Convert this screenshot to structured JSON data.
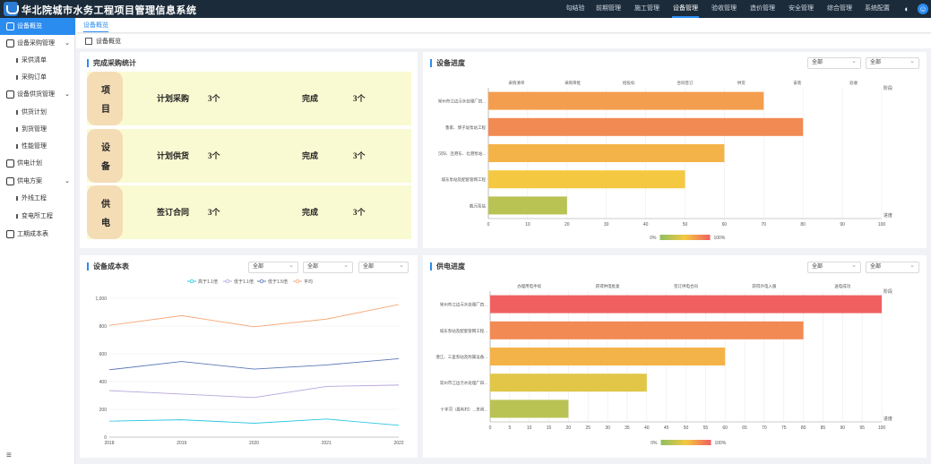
{
  "app": {
    "title": "华北院城市水务工程项目管理信息系统"
  },
  "nav": {
    "items": [
      "勾结验",
      "前期管理",
      "施工管理",
      "设备管理",
      "验收管理",
      "造价管理",
      "安全管理",
      "综合管理",
      "系统配置"
    ],
    "active": "设备管理"
  },
  "sidebar": {
    "items": [
      {
        "label": "设备概览",
        "active": true
      },
      {
        "label": "设备采购管理",
        "expandable": true
      },
      {
        "label": "采供清单",
        "sub": true
      },
      {
        "label": "采购订单",
        "sub": true
      },
      {
        "label": "设备供货管理",
        "expandable": true
      },
      {
        "label": "供货计划",
        "sub": true
      },
      {
        "label": "到货管理",
        "sub": true
      },
      {
        "label": "性能管理",
        "sub": true
      },
      {
        "label": "供电计划"
      },
      {
        "label": "供电方案",
        "expandable": true
      },
      {
        "label": "外线工程",
        "sub": true
      },
      {
        "label": "变电所工程",
        "sub": true
      },
      {
        "label": "工期成本表"
      }
    ]
  },
  "tabs": {
    "current": "设备概览"
  },
  "breadcrumb": {
    "current": "设备概览"
  },
  "procurement": {
    "title": "完成采购统计",
    "rows": [
      {
        "cap": [
          "项",
          "目"
        ],
        "label": "计划采购",
        "planned": "3个",
        "done_label": "完成",
        "done": "3个"
      },
      {
        "cap": [
          "设",
          "备"
        ],
        "label": "计划供货",
        "planned": "3个",
        "done_label": "完成",
        "done": "3个"
      },
      {
        "cap": [
          "供",
          "电"
        ],
        "label": "签订合同",
        "planned": "3个",
        "done_label": "完成",
        "done": "3个"
      }
    ]
  },
  "device_progress": {
    "title": "设备进度",
    "filter1": "全部",
    "filter2": "全部",
    "stages": [
      "采购清单",
      "采购审批",
      "招投标",
      "合同签订",
      "供货",
      "安装",
      "验收"
    ],
    "end_label": "阶段",
    "axis_label": "进度",
    "legend_min": "0%",
    "legend_max": "100%"
  },
  "device_cost": {
    "title": "设备成本表",
    "filter1": "全部",
    "filter2": "全部",
    "filter3": "全部"
  },
  "power_progress": {
    "title": "供电进度",
    "filter1": "全部",
    "filter2": "全部",
    "stages": [
      "办理用电手续",
      "获得供电批复",
      "签订供电合同",
      "获得外电入服",
      "送电成功"
    ],
    "end_label": "阶段",
    "axis_label": "进度",
    "legend_min": "0%",
    "legend_max": "100%"
  },
  "colors": {
    "accent": "#2b8cf0",
    "topbar": "#1c2b3a"
  },
  "chart_data": [
    {
      "type": "bar",
      "orientation": "horizontal",
      "categories": [
        "常州市江边污水处理厂四...",
        "鲁家、博子垅泵站工程",
        "汉阳、连港东、北港泵站...",
        "城东泵站及配套管网工程",
        "截污泵站"
      ],
      "values": [
        70,
        80,
        60,
        50,
        20
      ],
      "xlim": [
        0,
        100
      ],
      "xticks": [
        0,
        10,
        20,
        30,
        40,
        50,
        60,
        70,
        80,
        90,
        100
      ]
    },
    {
      "type": "line",
      "x": [
        2018,
        2019,
        2020,
        2021,
        2022
      ],
      "ylim": [
        0,
        1000
      ],
      "yticks": [
        0,
        200,
        400,
        600,
        800,
        1000
      ],
      "series": [
        {
          "name": "高于1.1倍",
          "color": "#2ec7e0",
          "values": [
            115,
            125,
            100,
            130,
            85
          ]
        },
        {
          "name": "低于1.1倍",
          "color": "#b7a6dc",
          "values": [
            335,
            310,
            285,
            365,
            375
          ]
        },
        {
          "name": "低于1.5倍",
          "color": "#5b78b8",
          "values": [
            485,
            545,
            490,
            520,
            565
          ]
        },
        {
          "name": "平均",
          "color": "#f5a878",
          "values": [
            805,
            875,
            795,
            850,
            955
          ]
        }
      ]
    },
    {
      "type": "bar",
      "orientation": "horizontal",
      "categories": [
        "常州市江边污水处理厂四...",
        "城东泵站及配套管网工程...",
        "潜江、三里泵站及附属设备...",
        "常州市江边污水处理厂四...",
        "十字河（胜利村）...关闸..."
      ],
      "values": [
        100,
        80,
        60,
        40,
        20
      ],
      "xlim": [
        0,
        100
      ],
      "xticks": [
        0,
        5,
        10,
        15,
        20,
        25,
        30,
        35,
        40,
        45,
        50,
        55,
        60,
        65,
        70,
        75,
        80,
        85,
        90,
        95,
        100
      ]
    }
  ]
}
